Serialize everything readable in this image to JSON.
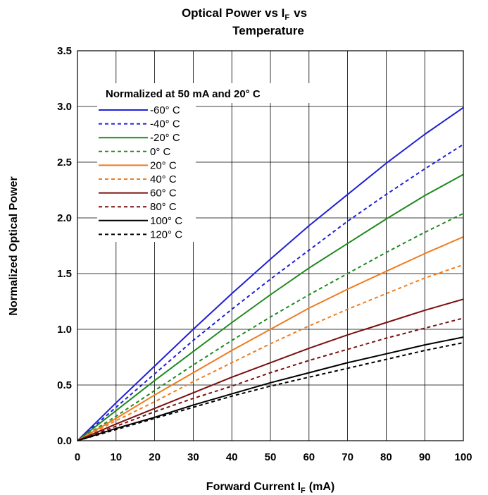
{
  "chart_data": {
    "type": "line",
    "title_line1_main": "Optical Power vs I",
    "title_line1_sub": "F",
    "title_line1_tail": "vs",
    "title_line2": "Temperature",
    "xlabel_main": "Forward Current I",
    "xlabel_sub": "F",
    "xlabel_tail": "(mA)",
    "ylabel": "Normalized Optical Power",
    "annotation": "Normalized at 50 mA and 20° C",
    "xlim": [
      0,
      100
    ],
    "ylim": [
      0,
      3.5
    ],
    "x_ticks": [
      "0",
      "10",
      "20",
      "30",
      "40",
      "50",
      "60",
      "70",
      "80",
      "90",
      "100"
    ],
    "y_ticks": [
      "0.0",
      "0.5",
      "1.0",
      "1.5",
      "2.0",
      "2.5",
      "3.0",
      "3.5"
    ],
    "grid": true,
    "legend_position": "upper-left",
    "x": [
      0,
      10,
      20,
      30,
      40,
      50,
      60,
      70,
      80,
      90,
      100
    ],
    "series": [
      {
        "name": "-60° C",
        "color": "#1f1fd6",
        "dash": "solid",
        "values": [
          0.0,
          0.34,
          0.67,
          1.0,
          1.32,
          1.63,
          1.93,
          2.21,
          2.49,
          2.75,
          2.99
        ]
      },
      {
        "name": "-40° C",
        "color": "#1f1fd6",
        "dash": "dotted",
        "values": [
          0.0,
          0.3,
          0.6,
          0.9,
          1.18,
          1.45,
          1.71,
          1.97,
          2.21,
          2.44,
          2.66
        ]
      },
      {
        "name": "-20° C",
        "color": "#1f8a1f",
        "dash": "solid",
        "values": [
          0.0,
          0.27,
          0.54,
          0.8,
          1.06,
          1.31,
          1.55,
          1.77,
          1.99,
          2.2,
          2.39
        ]
      },
      {
        "name": "0° C",
        "color": "#1f8a1f",
        "dash": "dotted",
        "values": [
          0.0,
          0.22,
          0.45,
          0.68,
          0.9,
          1.11,
          1.31,
          1.5,
          1.69,
          1.87,
          2.04
        ]
      },
      {
        "name": "20° C",
        "color": "#f07b1c",
        "dash": "solid",
        "values": [
          0.0,
          0.2,
          0.41,
          0.61,
          0.81,
          1.0,
          1.19,
          1.36,
          1.52,
          1.68,
          1.83
        ]
      },
      {
        "name": "40° C",
        "color": "#f07b1c",
        "dash": "dotted",
        "values": [
          0.0,
          0.18,
          0.35,
          0.53,
          0.7,
          0.87,
          1.03,
          1.18,
          1.32,
          1.46,
          1.58
        ]
      },
      {
        "name": "60° C",
        "color": "#7b0f0f",
        "dash": "solid",
        "values": [
          0.0,
          0.15,
          0.29,
          0.43,
          0.57,
          0.7,
          0.83,
          0.95,
          1.06,
          1.17,
          1.27
        ]
      },
      {
        "name": "80° C",
        "color": "#7b0f0f",
        "dash": "dotted",
        "values": [
          0.0,
          0.13,
          0.26,
          0.38,
          0.49,
          0.61,
          0.72,
          0.82,
          0.92,
          1.01,
          1.1
        ]
      },
      {
        "name": "100° C",
        "color": "#000000",
        "dash": "solid",
        "values": [
          0.0,
          0.11,
          0.21,
          0.32,
          0.42,
          0.52,
          0.61,
          0.7,
          0.78,
          0.86,
          0.93
        ]
      },
      {
        "name": "120° C",
        "color": "#000000",
        "dash": "dotted",
        "values": [
          0.0,
          0.1,
          0.2,
          0.3,
          0.4,
          0.49,
          0.57,
          0.65,
          0.73,
          0.81,
          0.88
        ]
      }
    ]
  }
}
